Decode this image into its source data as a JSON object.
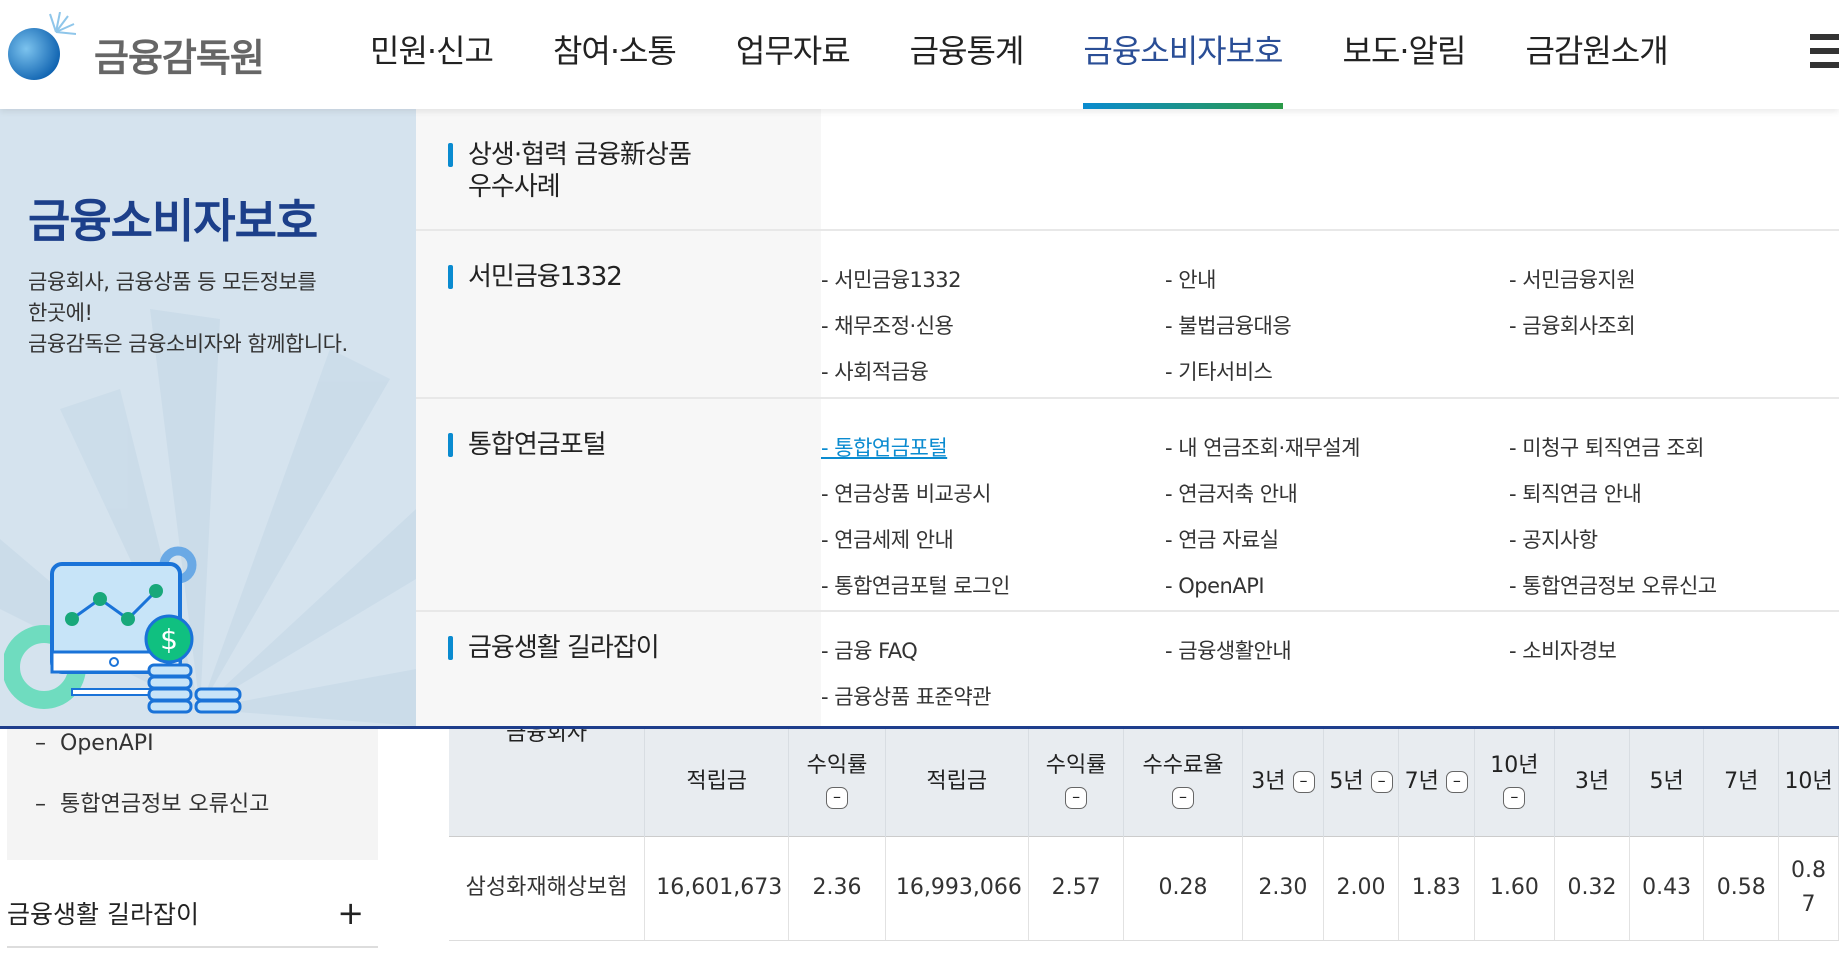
{
  "header": {
    "logo_text": "금융감독원",
    "nav": [
      "민원·신고",
      "참여·소통",
      "업무자료",
      "금융통계",
      "금융소비자보호",
      "보도·알림",
      "금감원소개"
    ],
    "active_nav": 4
  },
  "panel": {
    "title": "금융소비자보호",
    "desc": [
      "금융회사, 금융상품 등 모든정보를",
      "한곳에!",
      "금융감독은 금융소비자와 함께합니다."
    ]
  },
  "categories": [
    {
      "label_lines": [
        "상생·협력 금융新상품",
        "우수사례"
      ],
      "links": []
    },
    {
      "label_lines": [
        "서민금융1332"
      ],
      "links": [
        "- 서민금융1332",
        "- 안내",
        "- 서민금융지원",
        "- 채무조정·신용",
        "- 불법금융대응",
        "- 금융회사조회",
        "- 사회적금융",
        "- 기타서비스"
      ]
    },
    {
      "label_lines": [
        "통합연금포털"
      ],
      "links": [
        "- 통합연금포털",
        "- 내 연금조회·재무설계",
        "- 미청구 퇴직연금 조회",
        "- 연금상품 비교공시",
        "- 연금저축 안내",
        "- 퇴직연금 안내",
        "- 연금세제 안내",
        "- 연금 자료실",
        "- 공지사항",
        "- 통합연금포털 로그인",
        "- OpenAPI",
        "- 통합연금정보 오류신고"
      ],
      "active_link": 0
    },
    {
      "label_lines": [
        "금융생활 길라잡이"
      ],
      "links": [
        "- 금융 FAQ",
        "- 금융생활안내",
        "- 소비자경보",
        "- 금융상품 표준약관"
      ]
    }
  ],
  "sidebar": {
    "items": [
      "OpenAPI",
      "통합연금정보 오류신고"
    ],
    "section": "금융생활 길라잡이",
    "section_icon": "plus-icon"
  },
  "table": {
    "headers": [
      "금융회사",
      "적립금",
      "수익률",
      "적립금",
      "수익률",
      "수수료율",
      "3년",
      "5년",
      "7년",
      "10년",
      "3년",
      "5년",
      "7년",
      "10년"
    ],
    "collapsible": [
      false,
      false,
      true,
      false,
      true,
      true,
      true,
      true,
      true,
      true,
      false,
      false,
      false,
      false
    ],
    "rows": [
      [
        "삼성화재해상보험",
        "16,601,673",
        "2.36",
        "16,993,066",
        "2.57",
        "0.28",
        "2.30",
        "2.00",
        "1.83",
        "1.60",
        "0.32",
        "0.43",
        "0.58",
        "0.87"
      ]
    ]
  },
  "colors": {
    "accent": "#0a8bd0",
    "brand_navy": "#1c3f8a",
    "panel_bg": "#d5e3ee"
  }
}
